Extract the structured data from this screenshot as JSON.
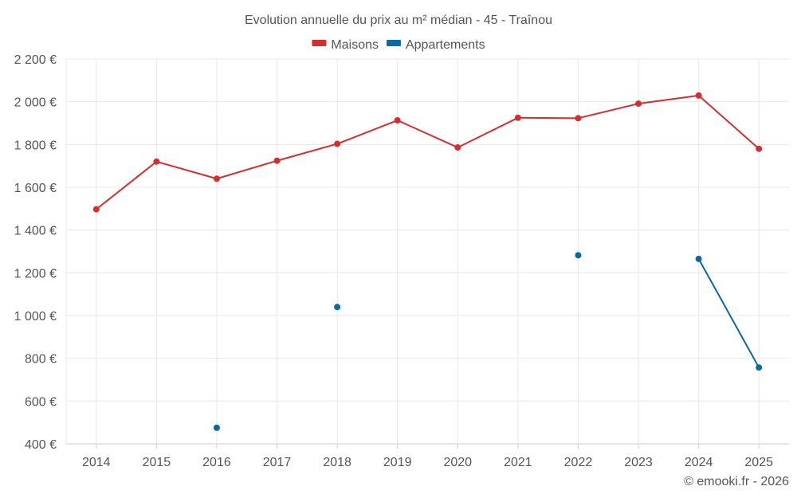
{
  "chart_data": {
    "type": "line",
    "title": "Evolution annuelle du prix au m² médian - 45 - Traînou",
    "categories": [
      "2014",
      "2015",
      "2016",
      "2017",
      "2018",
      "2019",
      "2020",
      "2021",
      "2022",
      "2023",
      "2024",
      "2025"
    ],
    "ylim": [
      400,
      2200
    ],
    "yticks": [
      400,
      600,
      800,
      1000,
      1200,
      1400,
      1600,
      1800,
      2000,
      2200
    ],
    "ytick_labels": [
      "400 €",
      "600 €",
      "800 €",
      "1 000 €",
      "1 200 €",
      "1 400 €",
      "1 600 €",
      "1 800 €",
      "2 000 €",
      "2 200 €"
    ],
    "grid": true,
    "legend_position": "top-center",
    "series": [
      {
        "name": "Maisons",
        "color": "#d32f2f",
        "values": [
          1497,
          1720,
          1640,
          1724,
          1803,
          1913,
          1786,
          1925,
          1923,
          1991,
          2029,
          1780
        ]
      },
      {
        "name": "Appartements",
        "color": "#0a6aa1",
        "values": [
          null,
          null,
          475,
          null,
          1040,
          null,
          null,
          null,
          1282,
          null,
          1265,
          757
        ]
      }
    ]
  },
  "credit": "© emooki.fr - 2026"
}
